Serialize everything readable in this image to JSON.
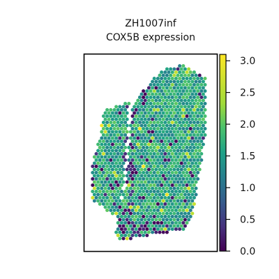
{
  "chart_data": {
    "type": "scatter",
    "title": "ZH1007inf",
    "subtitle": "COX5B expression",
    "xlabel": "",
    "ylabel": "",
    "colormap": "viridis",
    "colorbar": {
      "range": [
        0.0,
        3.1
      ],
      "ticks": [
        0.0,
        0.5,
        1.0,
        1.5,
        2.0,
        2.5,
        3.0
      ],
      "tick_labels": [
        "0.0",
        "0.5",
        "1.0",
        "1.5",
        "2.0",
        "2.5",
        "3.0"
      ],
      "placement": "right"
    },
    "grid": false,
    "marker": "hexagonal spot",
    "value_distribution": {
      "typical": 1.6,
      "low_cluster_regions": [
        "bottom-center",
        "left-edge",
        "inner-gap"
      ]
    }
  },
  "colors": {
    "viridis_0": "#440154",
    "viridis_25": "#3b528b",
    "viridis_50": "#21918c",
    "viridis_75": "#5ec962",
    "viridis_100": "#fde725",
    "frame": "#000000"
  }
}
